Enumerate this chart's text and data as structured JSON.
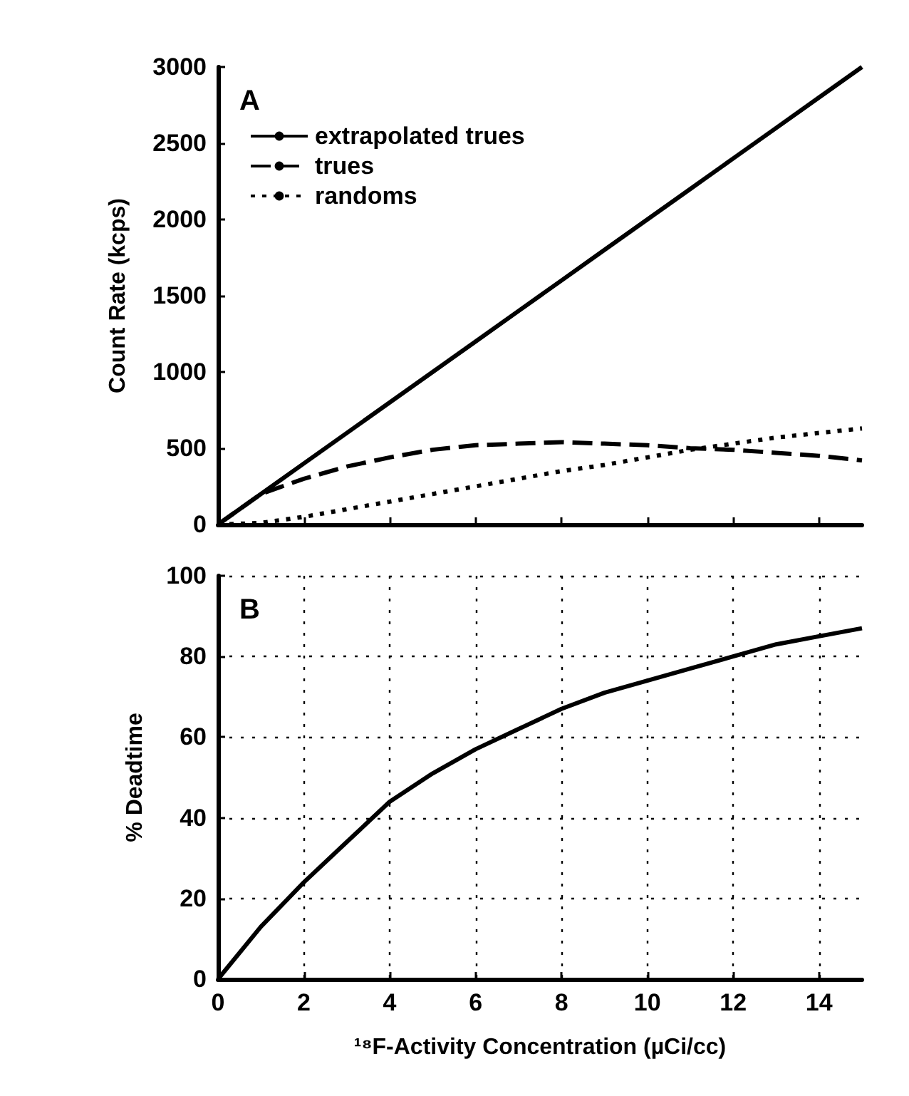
{
  "chart_data": [
    {
      "type": "line",
      "ylabel": "Count Rate (kcps)",
      "annotations": [
        "A"
      ],
      "x": [
        0,
        1,
        2,
        3,
        4,
        5,
        6,
        7,
        8,
        9,
        10,
        11,
        12,
        13,
        14,
        15
      ],
      "xlim": [
        0,
        15
      ],
      "xticks": [
        0,
        2,
        4,
        6,
        8,
        10,
        12,
        14
      ],
      "ylim": [
        0,
        3000
      ],
      "yticks": [
        0,
        500,
        1000,
        1500,
        2000,
        2500,
        3000
      ],
      "tick_labels": "y",
      "grid": false,
      "legend": "top left",
      "marker": "none",
      "series": [
        {
          "name": "extrapolated trues",
          "color": "#000000",
          "line_style": "solid",
          "values": [
            0,
            200,
            400,
            600,
            800,
            1000,
            1200,
            1400,
            1600,
            1800,
            2000,
            2200,
            2400,
            2600,
            2800,
            3000
          ]
        },
        {
          "name": "trues",
          "color": "#000000",
          "line_style": "dashed",
          "values": [
            0,
            200,
            300,
            380,
            440,
            490,
            520,
            530,
            540,
            530,
            520,
            500,
            490,
            470,
            450,
            420
          ]
        },
        {
          "name": "randoms",
          "color": "#000000",
          "line_style": "dotted",
          "values": [
            0,
            10,
            50,
            100,
            150,
            200,
            250,
            300,
            350,
            390,
            440,
            490,
            530,
            570,
            600,
            630
          ]
        }
      ]
    },
    {
      "type": "line",
      "ylabel": "% Deadtime",
      "xlabel": "¹⁸F-Activity Concentration (µCi/cc)",
      "annotations": [
        "B"
      ],
      "x": [
        0,
        1,
        2,
        3,
        4,
        5,
        6,
        7,
        8,
        9,
        10,
        11,
        12,
        13,
        14,
        15
      ],
      "xlim": [
        0,
        15
      ],
      "xticks": [
        0,
        2,
        4,
        6,
        8,
        10,
        12,
        14
      ],
      "ylim": [
        0,
        100
      ],
      "yticks": [
        0,
        20,
        40,
        60,
        80,
        100
      ],
      "grid": true,
      "legend": false,
      "marker": "none",
      "series": [
        {
          "color": "#000000",
          "line_style": "solid",
          "values": [
            0,
            13,
            24,
            34,
            44,
            51,
            57,
            62,
            67,
            71,
            74,
            77,
            80,
            83,
            85,
            87
          ]
        }
      ]
    }
  ]
}
